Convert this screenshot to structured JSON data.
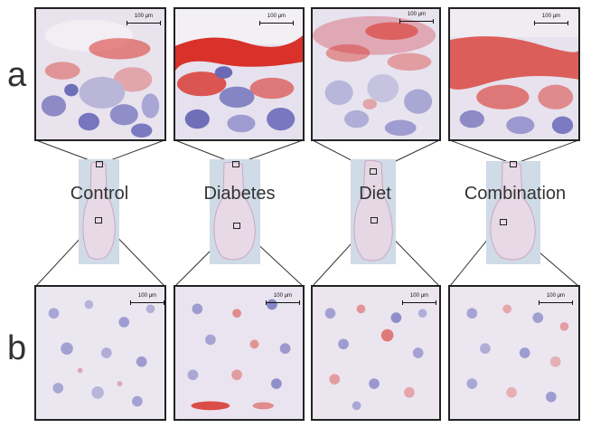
{
  "rows": [
    {
      "letter": "a"
    },
    {
      "letter": "b"
    }
  ],
  "groups": [
    {
      "label": "Control"
    },
    {
      "label": "Diabetes"
    },
    {
      "label": "Diet"
    },
    {
      "label": "Combination"
    }
  ],
  "scale_bar": {
    "label": "100 µm"
  },
  "colors": {
    "stain_red": "#d8322a",
    "nuclei_blue": "#6f6fb8",
    "background_lavender": "#e8e4ef",
    "thumbnail_blue": "#cfdbe6",
    "frame": "#222222"
  }
}
